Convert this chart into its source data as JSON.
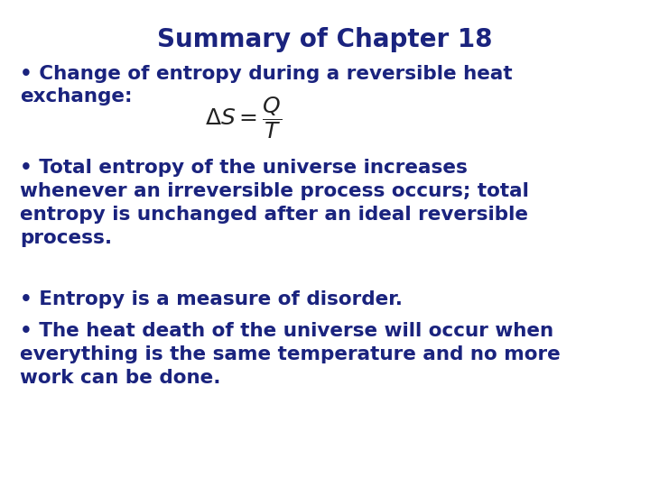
{
  "title": "Summary of Chapter 18",
  "title_color": "#1a237e",
  "title_fontsize": 20,
  "background_color": "#ffffff",
  "text_color": "#1a237e",
  "formula_color": "#222222",
  "bullet_fontsize": 15.5,
  "formula_fontsize": 18,
  "bullet1_line1": "• Change of entropy during a reversible heat",
  "bullet1_line2": "exchange:",
  "formula": "$\\Delta S = \\dfrac{Q}{T}$",
  "bullet2_line1": "• Total entropy of the universe increases",
  "bullet2_line2": "whenever an irreversible process occurs; total",
  "bullet2_line3": "entropy is unchanged after an ideal reversible",
  "bullet2_line4": "process.",
  "bullet3": "• Entropy is a measure of disorder.",
  "bullet4_line1": "• The heat death of the universe will occur when",
  "bullet4_line2": "everything is the same temperature and no more",
  "bullet4_line3": "work can be done."
}
